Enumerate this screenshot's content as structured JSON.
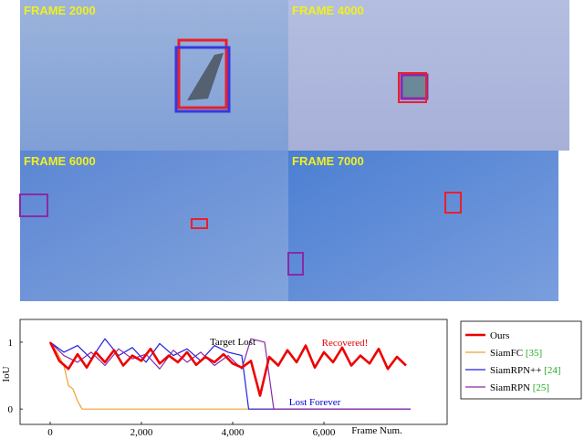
{
  "frames": [
    {
      "label": "FRAME 2000"
    },
    {
      "label": "FRAME 4000"
    },
    {
      "label": "FRAME 6000"
    },
    {
      "label": "FRAME 7000"
    }
  ],
  "chart_data": {
    "type": "line",
    "xlabel": "Frame Num.",
    "ylabel": "IoU",
    "xlim": [
      -660,
      8700
    ],
    "ylim": [
      -0.23,
      1.34
    ],
    "xticks": [
      0,
      {
        "value": 2000,
        "label": "2,000"
      },
      {
        "value": 4000,
        "label": "4,000"
      },
      {
        "value": 6000,
        "label": "6,000"
      }
    ],
    "yticks": [
      0,
      1
    ],
    "annotations": [
      {
        "text": "Target Lost",
        "color": "#000000"
      },
      {
        "text": "Recovered!",
        "color": "#e00000"
      },
      {
        "text": "Lost Forever",
        "color": "#0000d0"
      }
    ],
    "series": [
      {
        "name": "Ours",
        "ref": "",
        "color": "#ee0000",
        "width": 2.6,
        "x": [
          0,
          200,
          400,
          600,
          800,
          1000,
          1200,
          1400,
          1600,
          1800,
          2000,
          2200,
          2400,
          2600,
          2800,
          3000,
          3200,
          3400,
          3600,
          3800,
          4000,
          4200,
          4400,
          4600,
          4800,
          5000,
          5200,
          5400,
          5600,
          5800,
          6000,
          6200,
          6400,
          6600,
          6800,
          7000,
          7200,
          7400,
          7600,
          7800
        ],
        "values": [
          1.0,
          0.72,
          0.6,
          0.82,
          0.62,
          0.85,
          0.7,
          0.88,
          0.65,
          0.8,
          0.72,
          0.9,
          0.68,
          0.8,
          0.7,
          0.85,
          0.66,
          0.78,
          0.7,
          0.82,
          0.68,
          0.62,
          0.72,
          0.2,
          0.78,
          0.65,
          0.88,
          0.7,
          0.95,
          0.62,
          0.85,
          0.7,
          0.92,
          0.65,
          0.8,
          0.68,
          0.9,
          0.6,
          0.78,
          0.65
        ]
      },
      {
        "name": "SiamFC",
        "ref": "[35]",
        "color": "#f0a030",
        "width": 1.2,
        "x": [
          0,
          150,
          300,
          400,
          500,
          600,
          700,
          7900
        ],
        "values": [
          1.0,
          0.85,
          0.65,
          0.35,
          0.3,
          0.12,
          0.0,
          0.0
        ]
      },
      {
        "name": "SiamRPN++",
        "ref": "[24]",
        "color": "#2020e0",
        "width": 1.2,
        "x": [
          0,
          300,
          600,
          900,
          1200,
          1500,
          1800,
          2100,
          2400,
          2700,
          3000,
          3300,
          3600,
          3900,
          4200,
          4350,
          7900
        ],
        "values": [
          1.0,
          0.85,
          0.95,
          0.75,
          1.05,
          0.8,
          0.92,
          0.7,
          0.98,
          0.8,
          0.9,
          0.72,
          0.95,
          0.85,
          0.8,
          0.0,
          0.0
        ]
      },
      {
        "name": "SiamRPN",
        "ref": "[25]",
        "color": "#8a2aa8",
        "width": 1.2,
        "x": [
          0,
          300,
          600,
          900,
          1200,
          1500,
          1800,
          2100,
          2400,
          2700,
          3000,
          3300,
          3600,
          3900,
          4200,
          4400,
          4700,
          4900,
          7900
        ],
        "values": [
          1.0,
          0.8,
          0.7,
          0.85,
          0.65,
          0.9,
          0.75,
          0.82,
          0.6,
          0.88,
          0.7,
          0.85,
          0.65,
          0.8,
          0.6,
          1.05,
          1.0,
          0.0,
          0.0
        ]
      }
    ]
  }
}
